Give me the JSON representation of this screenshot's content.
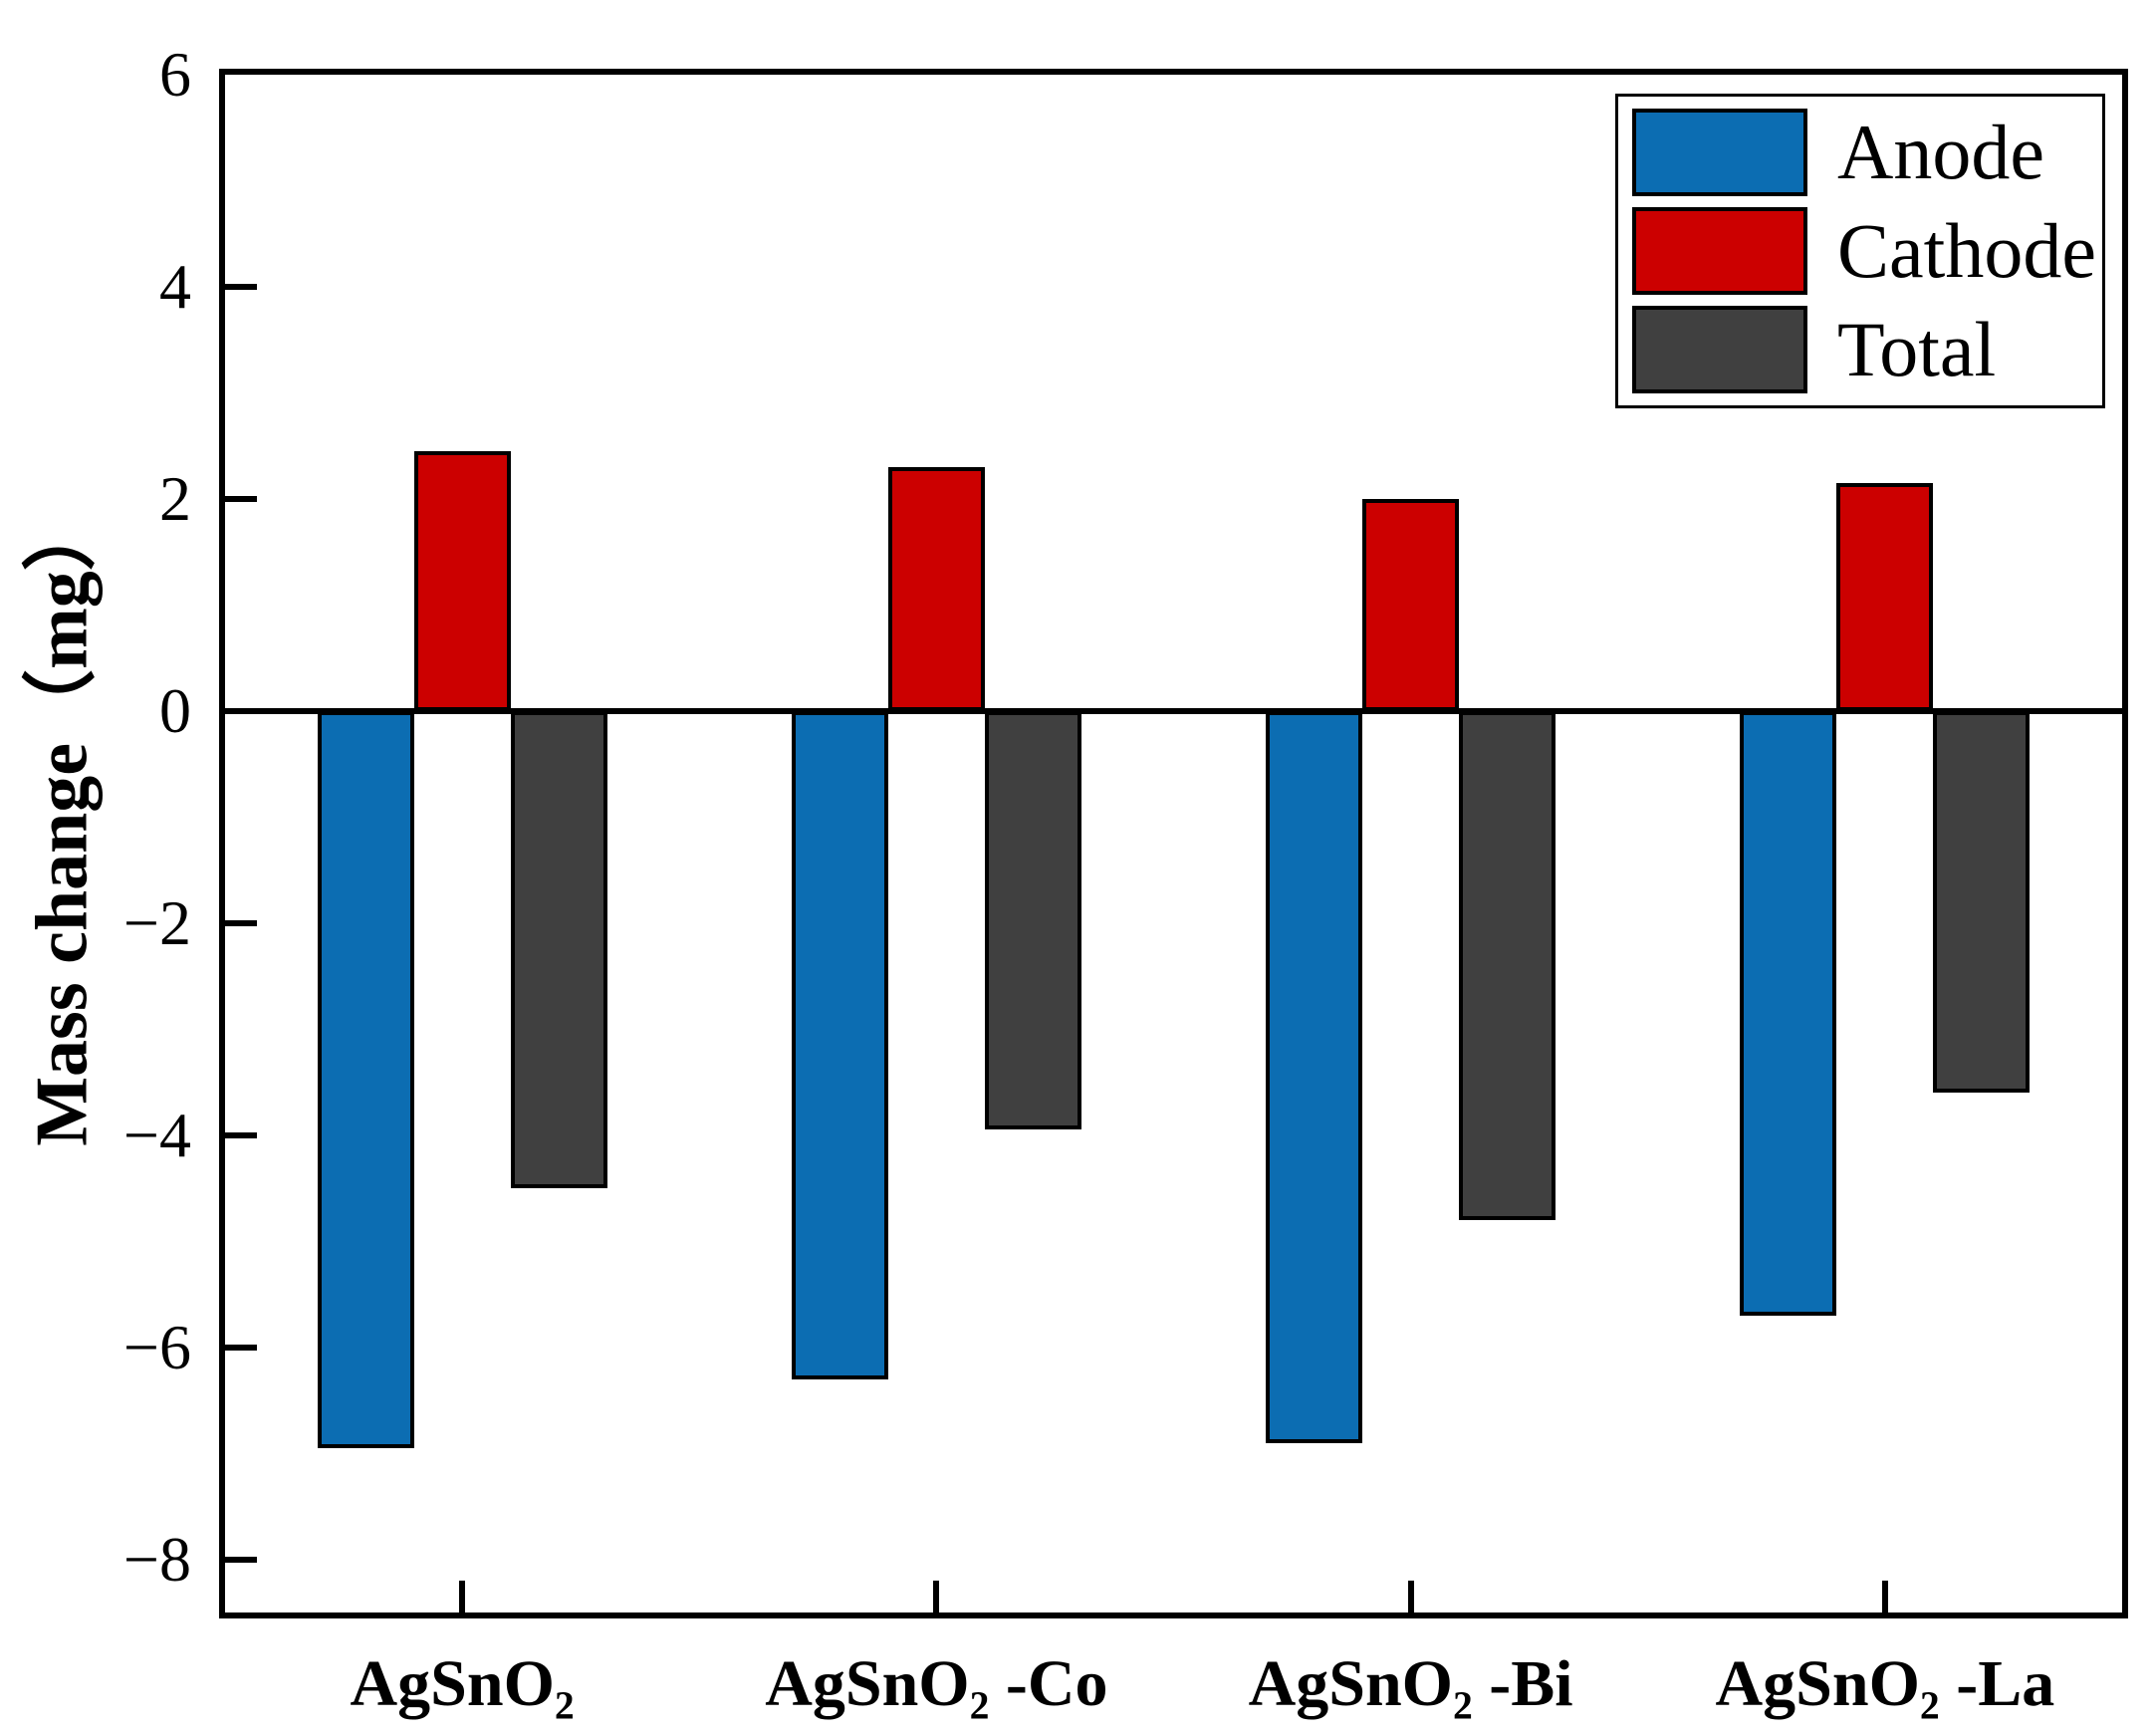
{
  "chart_data": {
    "type": "bar",
    "title": "",
    "ylabel": "Mass change（mg）",
    "xlabel": "",
    "categories": [
      "AgSnO₂",
      "AgSnO₂ -Co",
      "AgSnO₂ -Bi",
      "AgSnO₂ -La"
    ],
    "series": [
      {
        "name": "Anode",
        "color": "#0c6db2",
        "values": [
          -6.95,
          -6.3,
          -6.9,
          -5.7
        ]
      },
      {
        "name": "Cathode",
        "color": "#cc0000",
        "values": [
          2.45,
          2.3,
          2.0,
          2.15
        ]
      },
      {
        "name": "Total",
        "color": "#404040",
        "values": [
          -4.5,
          -3.95,
          -4.8,
          -3.6
        ]
      }
    ],
    "ylim": [
      -8.5,
      6
    ],
    "yticks": [
      {
        "v": 6,
        "label": "6"
      },
      {
        "v": 4,
        "label": "4"
      },
      {
        "v": 2,
        "label": "2"
      },
      {
        "v": 0,
        "label": "0"
      },
      {
        "v": -2,
        "label": "−2"
      },
      {
        "v": -4,
        "label": "−4"
      },
      {
        "v": -6,
        "label": "−6"
      },
      {
        "v": -8,
        "label": "−8"
      }
    ],
    "grid": false,
    "zero_line": true,
    "legend_position": "top-right",
    "axis_color": "#000000",
    "background": "#ffffff"
  }
}
